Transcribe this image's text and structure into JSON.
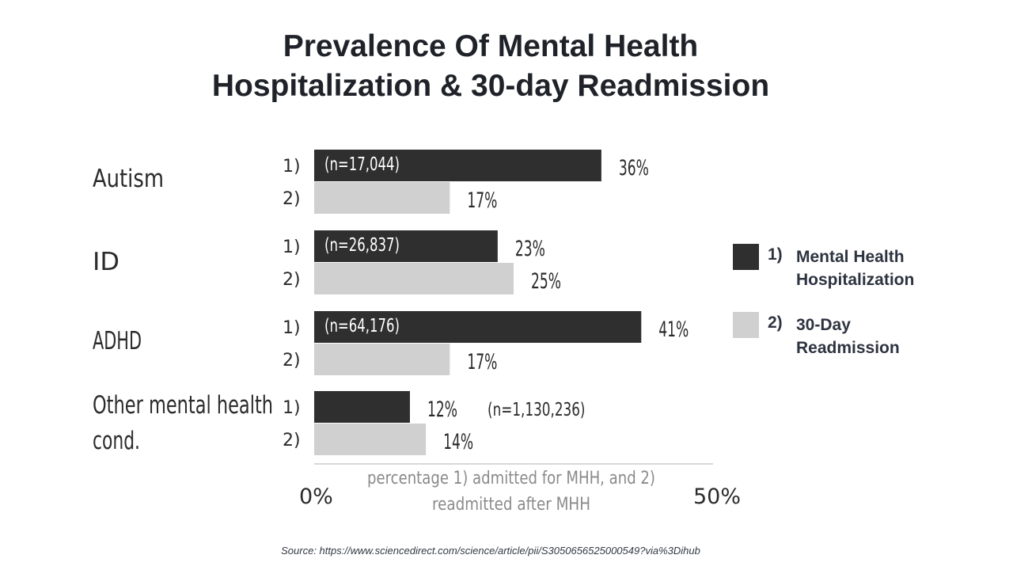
{
  "title": {
    "line1": "Prevalence Of Mental Health",
    "line2": "Hospitalization & 30-day Readmission"
  },
  "chart_data": {
    "type": "bar",
    "orientation": "horizontal",
    "categories": [
      "Autism",
      "ID",
      "ADHD",
      "Other mental health cond."
    ],
    "category_lines": [
      [
        "Autism"
      ],
      [
        "ID"
      ],
      [
        "ADHD"
      ],
      [
        "Other mental health",
        "cond."
      ]
    ],
    "series": [
      {
        "name": "Mental Health Hospitalization",
        "marker": "1)",
        "color": "#2f2f2f",
        "values": [
          36,
          23,
          41,
          12
        ],
        "labels": [
          "36%",
          "23%",
          "41%",
          "12%"
        ]
      },
      {
        "name": "30-Day Readmission",
        "marker": "2)",
        "color": "#d0d0d0",
        "values": [
          17,
          25,
          17,
          14
        ],
        "labels": [
          "17%",
          "25%",
          "17%",
          "14%"
        ]
      }
    ],
    "sample_sizes": [
      "(n=17,044)",
      "(n=26,837)",
      "(n=64,176)",
      "(n=1,130,236)"
    ],
    "xlim": [
      0,
      50
    ],
    "x_tick_labels": [
      "0%",
      "50%"
    ],
    "xlabel_lines": [
      "percentage 1) admitted for MHH, and 2)",
      "readmitted after MHH"
    ],
    "grid": false,
    "legend": "right"
  },
  "legend": {
    "items": [
      {
        "number": "1)",
        "line1": "Mental Health",
        "line2": "Hospitalization",
        "color": "#2f2f2f"
      },
      {
        "number": "2)",
        "line1": "30-Day",
        "line2": "Readmission",
        "color": "#d0d0d0"
      }
    ]
  },
  "source": "Source: https://www.sciencedirect.com/science/article/pii/S3050656525000549?via%3Dihub"
}
